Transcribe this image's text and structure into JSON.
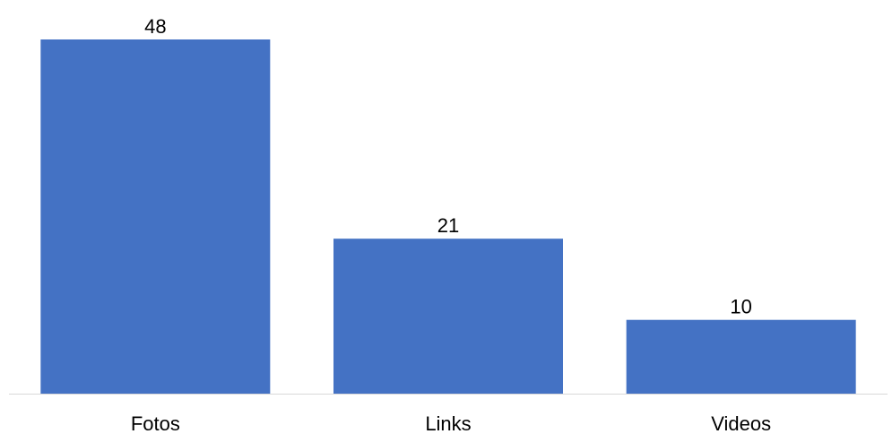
{
  "chart_data": {
    "type": "bar",
    "categories": [
      "Fotos",
      "Links",
      "Videos"
    ],
    "values": [
      48,
      21,
      10
    ],
    "title": "",
    "xlabel": "",
    "ylabel": "",
    "ylim": [
      0,
      48
    ],
    "grid": false,
    "legend": "none",
    "data_labels": [
      "48",
      "21",
      "10"
    ],
    "colors": {
      "bar": "#4472c4",
      "axis": "#d9d9d9"
    }
  }
}
